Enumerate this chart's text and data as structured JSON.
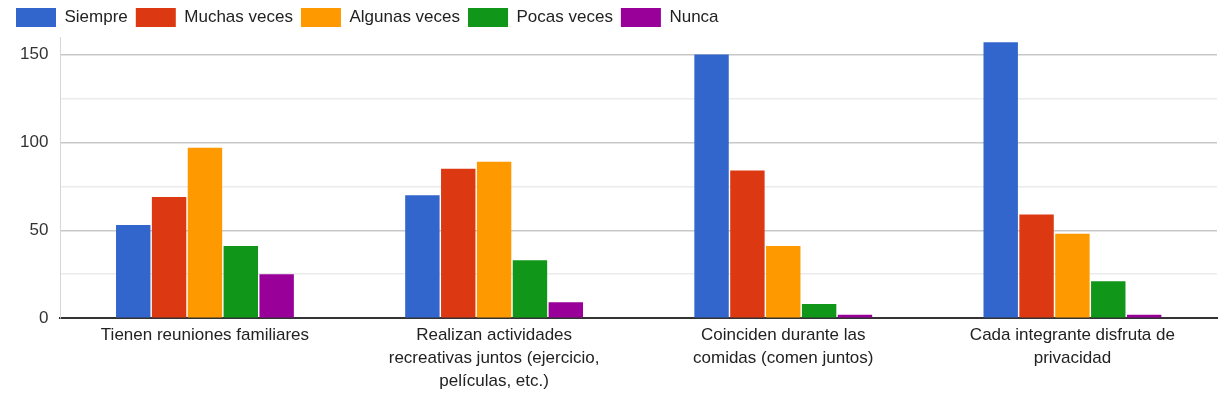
{
  "chart_data": {
    "type": "bar",
    "categories": [
      "Tienen reuniones familiares",
      "Realizan actividades recreativas juntos (ejercicio, películas, etc.)",
      "Coinciden durante las comidas (comen juntos)",
      "Cada integrante disfruta de privacidad"
    ],
    "series": [
      {
        "name": "Siempre",
        "color": "#3366cc",
        "values": [
          53,
          70,
          150,
          157
        ]
      },
      {
        "name": "Muchas veces",
        "color": "#dc3912",
        "values": [
          69,
          85,
          84,
          59
        ]
      },
      {
        "name": "Algunas veces",
        "color": "#ff9900",
        "values": [
          97,
          89,
          41,
          48
        ]
      },
      {
        "name": "Pocas veces",
        "color": "#109618",
        "values": [
          41,
          33,
          8,
          21
        ]
      },
      {
        "name": "Nunca",
        "color": "#990099",
        "values": [
          25,
          9,
          2,
          2
        ]
      }
    ],
    "ylim": [
      0,
      160
    ],
    "yticks": [
      0,
      {
        "value": 25,
        "label": null
      },
      50,
      {
        "value": 75,
        "label": null
      },
      100,
      {
        "value": 125,
        "label": null
      },
      150
    ],
    "grid": "y",
    "legend": "top left"
  }
}
